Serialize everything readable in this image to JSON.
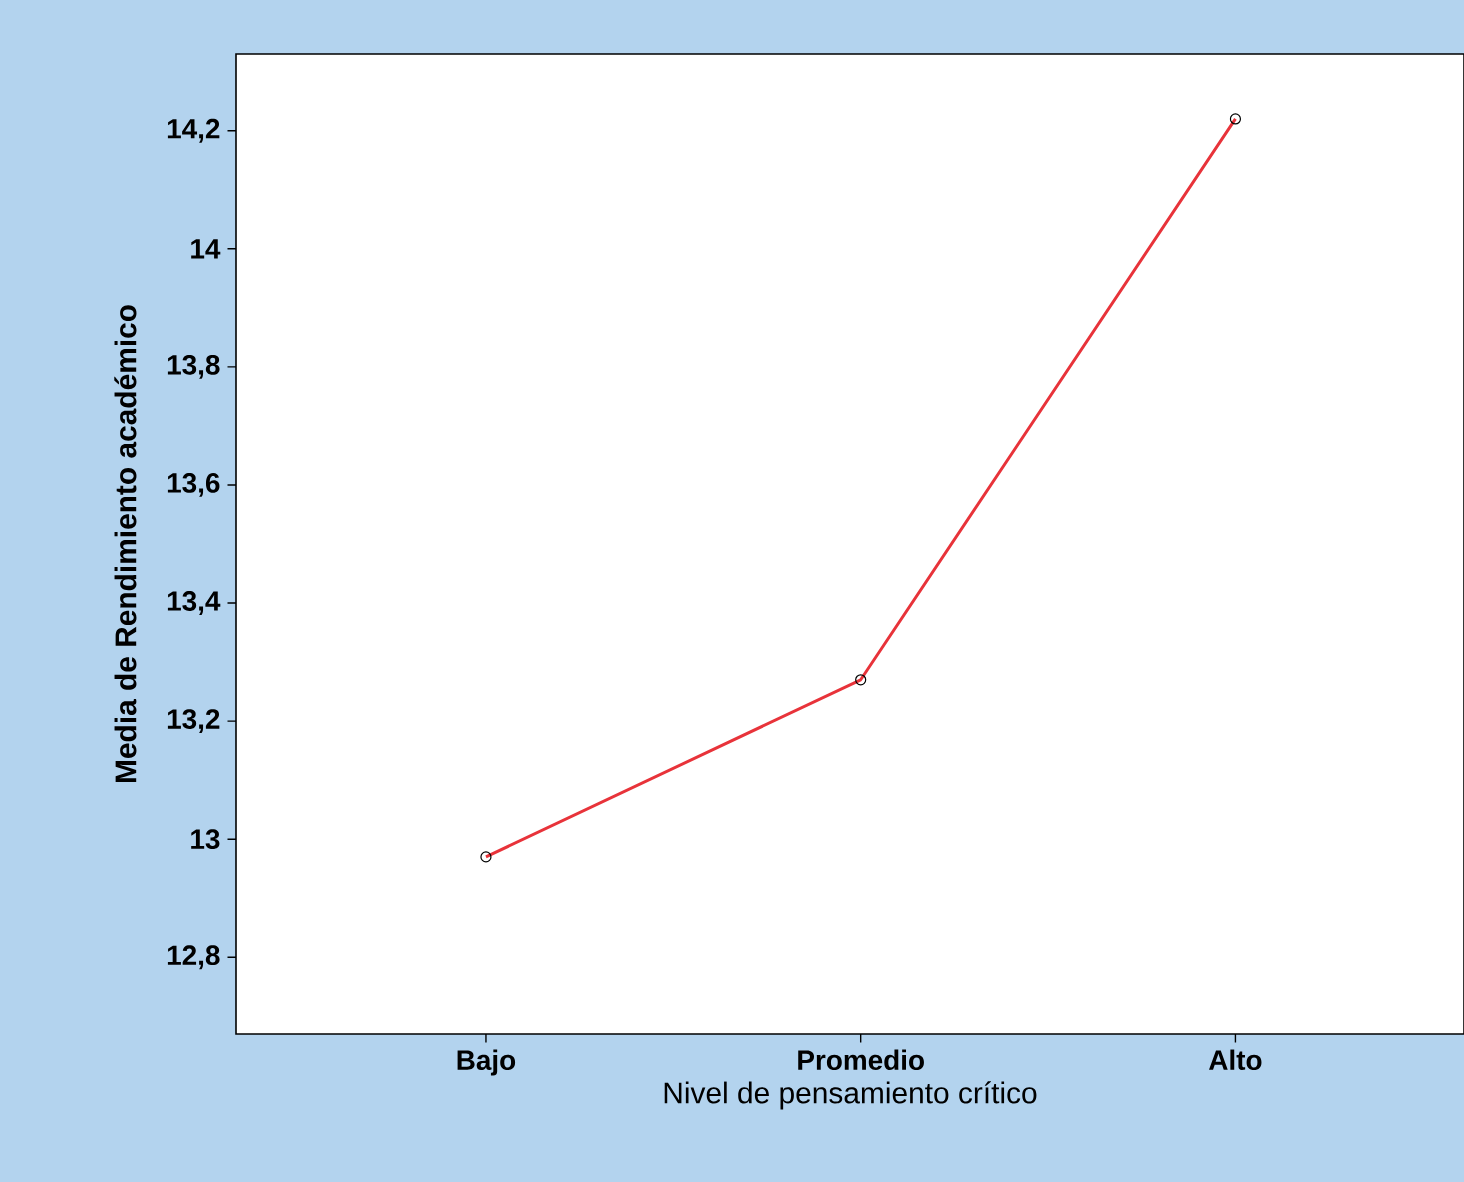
{
  "chart_data": {
    "type": "line",
    "xlabel": "Nivel de pensamiento crítico",
    "ylabel": "Media de Rendimiento académico",
    "categories": [
      "Bajo",
      "Promedio",
      "Alto"
    ],
    "series": [
      {
        "color": "#e8333a",
        "values": [
          12.97,
          13.27,
          14.22
        ]
      }
    ],
    "ylim": [
      12.67,
      14.33
    ],
    "yticks": [
      {
        "value": 12.8,
        "label": "12,8"
      },
      13,
      {
        "value": 13.2,
        "label": "13,2"
      },
      {
        "value": 13.4,
        "label": "13,4"
      },
      {
        "value": 13.6,
        "label": "13,6"
      },
      {
        "value": 13.8,
        "label": "13,8"
      },
      14,
      {
        "value": 14.2,
        "label": "14,2"
      }
    ],
    "marker": "circle",
    "line_style": "solid",
    "grid": false
  }
}
